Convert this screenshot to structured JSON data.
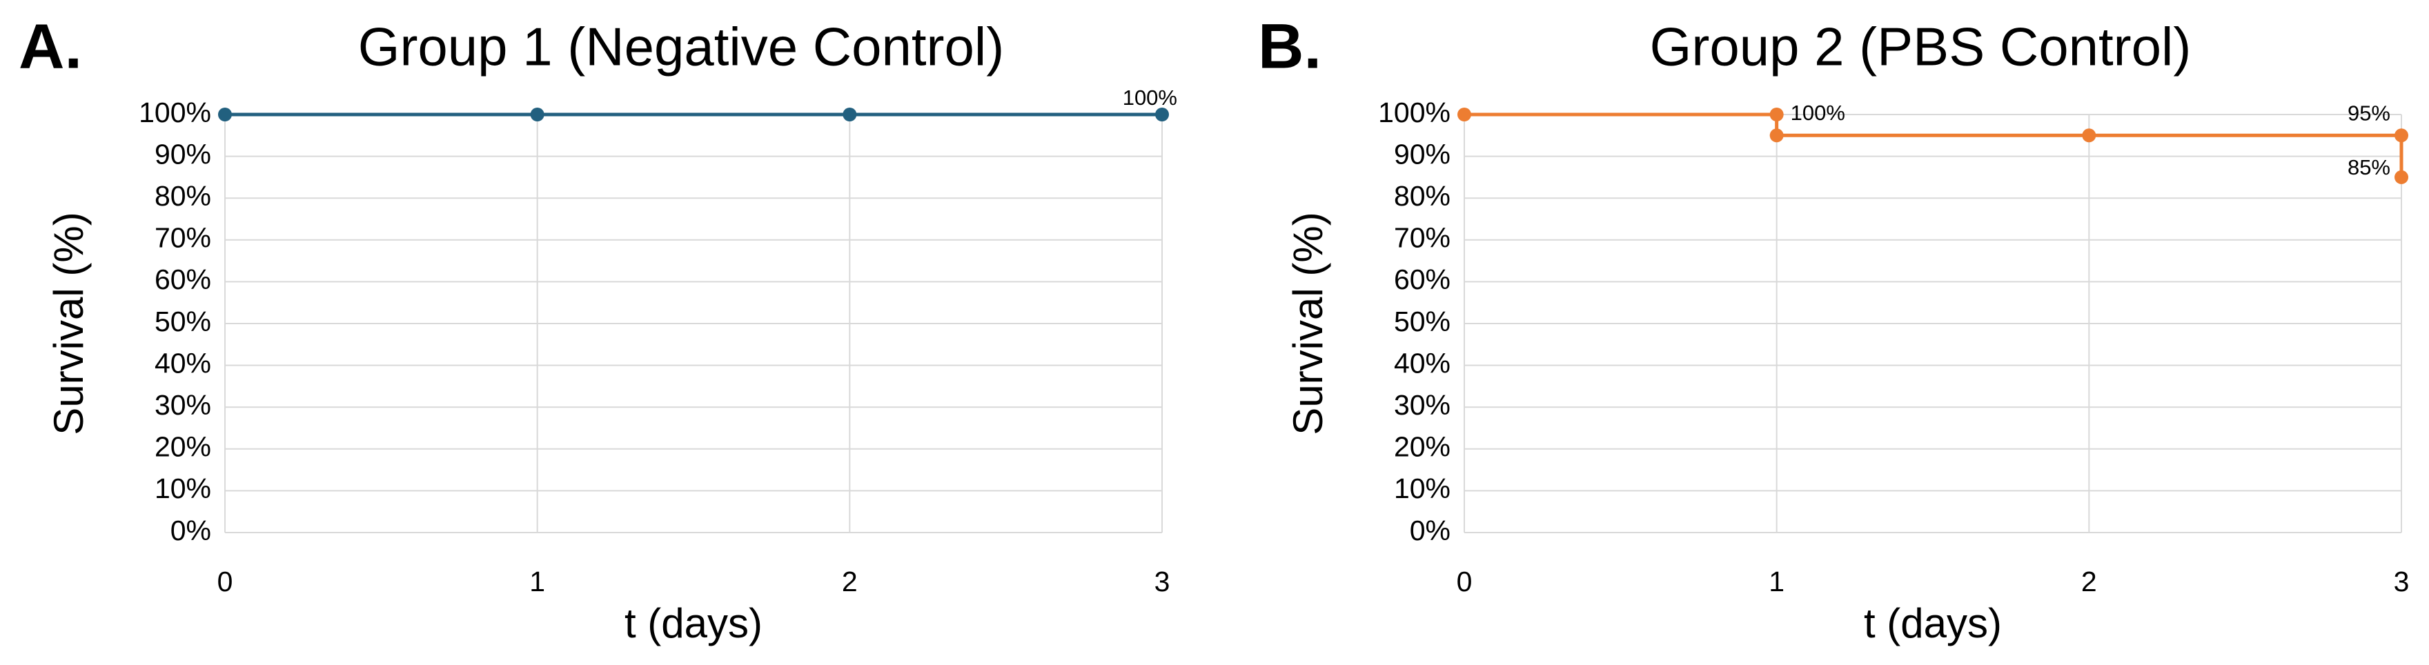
{
  "chart_data": [
    {
      "type": "line",
      "panel_label": "A.",
      "title": "Group 1 (Negative Control)",
      "x_label": "t (days)",
      "y_label": "Survival (%)",
      "x": [
        0,
        1,
        2,
        3
      ],
      "series": [
        {
          "color": "#22607f",
          "values": [
            100,
            100,
            100,
            100
          ],
          "value_labels": [
            null,
            null,
            null,
            "100%"
          ]
        }
      ],
      "xlim": [
        0,
        3
      ],
      "xticks": [
        0,
        1,
        2,
        3
      ],
      "ylim": [
        0,
        100
      ],
      "yticks": [
        {
          "value": 0,
          "label": "0%"
        },
        {
          "value": 10,
          "label": "10%"
        },
        {
          "value": 20,
          "label": "20%"
        },
        {
          "value": 30,
          "label": "30%"
        },
        {
          "value": 40,
          "label": "40%"
        },
        {
          "value": 50,
          "label": "50%"
        },
        {
          "value": 60,
          "label": "60%"
        },
        {
          "value": 70,
          "label": "70%"
        },
        {
          "value": 80,
          "label": "80%"
        },
        {
          "value": 90,
          "label": "90%"
        },
        {
          "value": 100,
          "label": "100%"
        }
      ],
      "grid": true
    },
    {
      "type": "line",
      "panel_label": "B.",
      "title": "Group 2 (PBS Control)",
      "x_label": "t (days)",
      "y_label": "Survival (%)",
      "x": [
        0,
        1,
        1,
        2,
        3,
        3
      ],
      "series": [
        {
          "color": "#ed7d31",
          "values": [
            100,
            100,
            95,
            95,
            95,
            85
          ],
          "value_labels": [
            null,
            "100%",
            null,
            null,
            "95%",
            "85%"
          ]
        }
      ],
      "xlim": [
        0,
        3
      ],
      "xticks": [
        0,
        1,
        2,
        3
      ],
      "ylim": [
        0,
        100
      ],
      "yticks": [
        {
          "value": 0,
          "label": "0%"
        },
        {
          "value": 10,
          "label": "10%"
        },
        {
          "value": 20,
          "label": "20%"
        },
        {
          "value": 30,
          "label": "30%"
        },
        {
          "value": 40,
          "label": "40%"
        },
        {
          "value": 50,
          "label": "50%"
        },
        {
          "value": 60,
          "label": "60%"
        },
        {
          "value": 70,
          "label": "70%"
        },
        {
          "value": 80,
          "label": "80%"
        },
        {
          "value": 90,
          "label": "90%"
        },
        {
          "value": 100,
          "label": "100%"
        }
      ],
      "grid": true
    }
  ]
}
